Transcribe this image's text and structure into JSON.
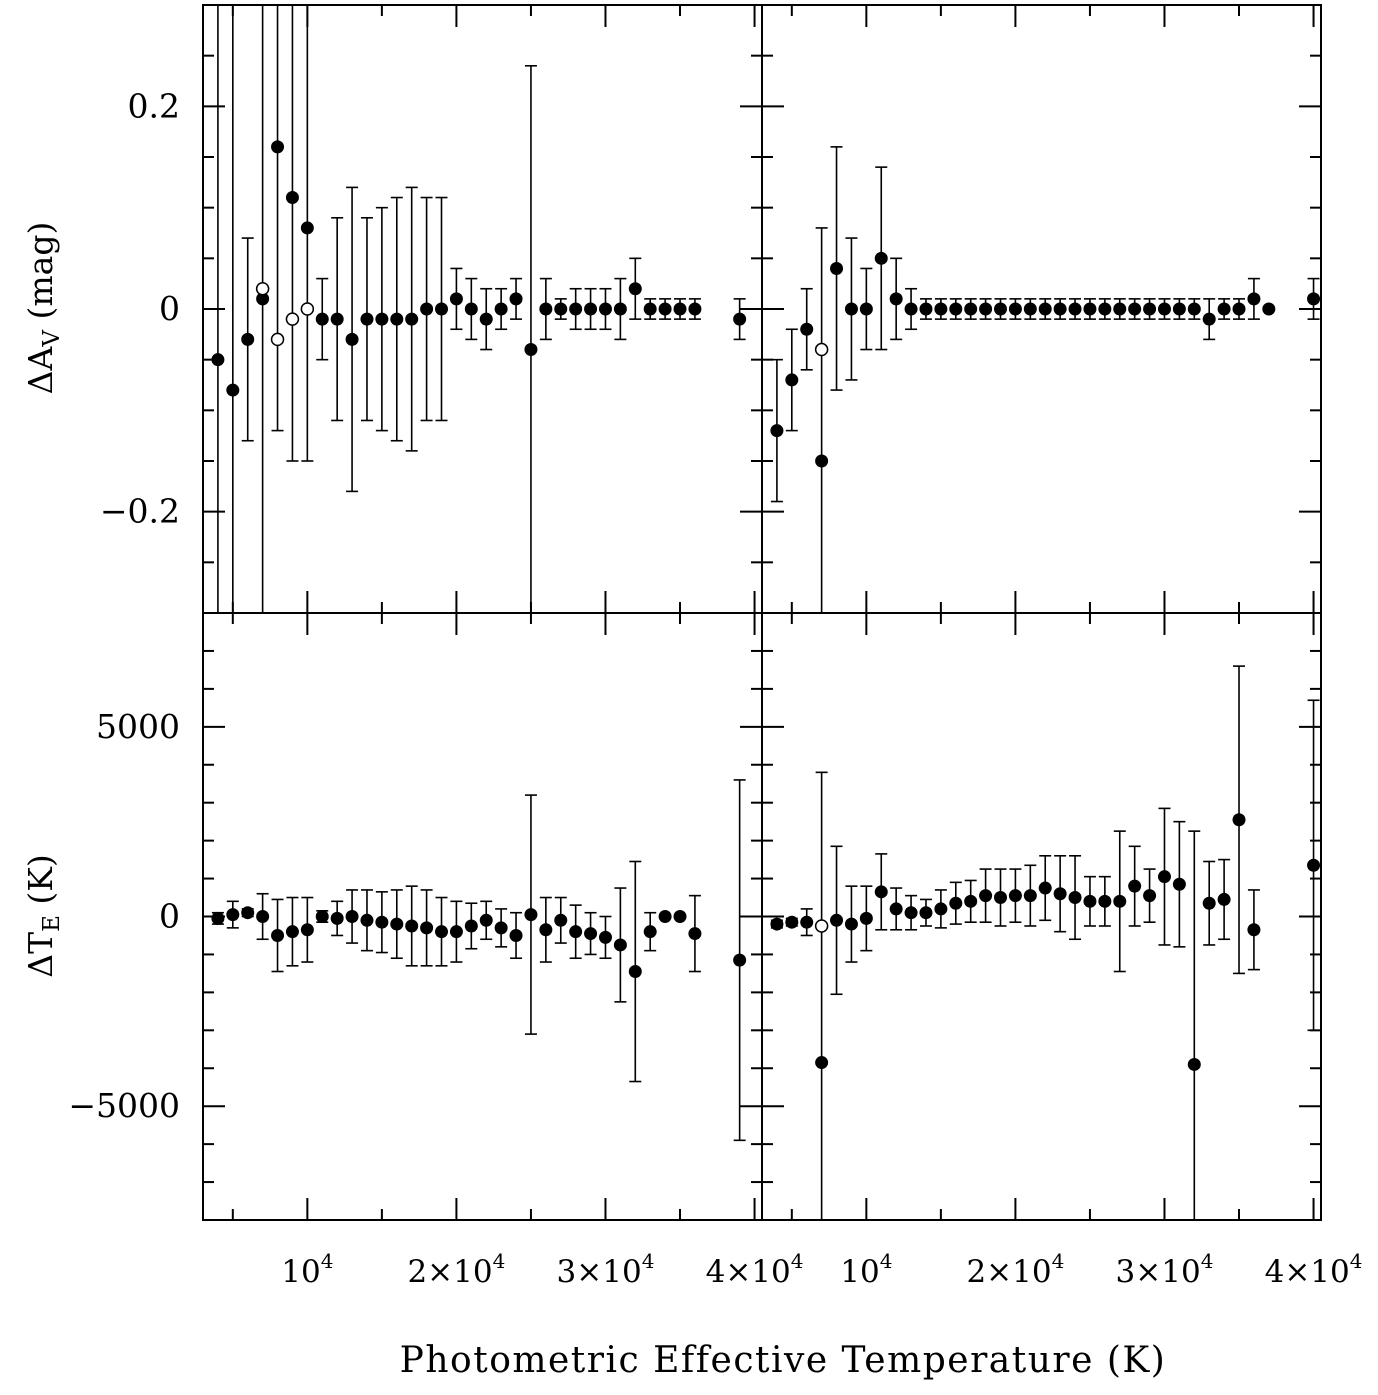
{
  "figure": {
    "xlabel": "Photometric Effective Temperature (K)",
    "ylabel_top": {
      "main": "ΔA",
      "sub": "V",
      "rest": " (mag)"
    },
    "ylabel_bottom": {
      "main": "ΔT",
      "sub": "E",
      "rest": " (K)"
    }
  },
  "chart_data": [
    {
      "type": "scatter",
      "panel": "top-left",
      "ylabel": "ΔAV (mag)",
      "xlim": [
        3000,
        40500
      ],
      "ylim": [
        -0.3,
        0.3
      ],
      "xticks": [
        10000,
        20000,
        30000,
        40000
      ],
      "xtick_labels": [
        {
          "m": "",
          "e": "10",
          "p": "4"
        },
        {
          "m": "2×",
          "e": "10",
          "p": "4"
        },
        {
          "m": "3×",
          "e": "10",
          "p": "4"
        },
        {
          "m": "4×",
          "e": "10",
          "p": "4"
        }
      ],
      "yticks": [
        -0.2,
        0,
        0.2
      ],
      "ytick_labels": [
        "−0.2",
        "0",
        "0.2"
      ],
      "show_xtick_labels": false,
      "show_ytick_labels": true,
      "series": [
        {
          "marker": "filled",
          "points": [
            [
              4000,
              -0.05,
              0.4
            ],
            [
              5000,
              -0.08,
              0.4
            ],
            [
              6000,
              -0.03,
              0.1
            ],
            [
              7000,
              0.01,
              0.45
            ],
            [
              8000,
              0.16,
              0.28
            ],
            [
              9000,
              0.11,
              0.26
            ],
            [
              10000,
              0.08,
              0.23
            ],
            [
              11000,
              -0.01,
              0.04
            ],
            [
              12000,
              -0.01,
              0.1
            ],
            [
              13000,
              -0.03,
              0.15
            ],
            [
              14000,
              -0.01,
              0.1
            ],
            [
              15000,
              -0.01,
              0.11
            ],
            [
              16000,
              -0.01,
              0.12
            ],
            [
              17000,
              -0.01,
              0.13
            ],
            [
              18000,
              0,
              0.11
            ],
            [
              19000,
              0,
              0.11
            ],
            [
              20000,
              0.01,
              0.03
            ],
            [
              21000,
              0,
              0.03
            ],
            [
              22000,
              -0.01,
              0.03
            ],
            [
              23000,
              0,
              0.02
            ],
            [
              24000,
              0.01,
              0.02
            ],
            [
              25000,
              -0.04,
              0.28
            ],
            [
              26000,
              0,
              0.03
            ],
            [
              27000,
              0,
              0.01
            ],
            [
              28000,
              0,
              0.02
            ],
            [
              29000,
              0,
              0.02
            ],
            [
              30000,
              0,
              0.02
            ],
            [
              31000,
              0,
              0.03
            ],
            [
              32000,
              0.02,
              0.03
            ],
            [
              33000,
              0,
              0.01
            ],
            [
              34000,
              0,
              0.01
            ],
            [
              35000,
              0,
              0.01
            ],
            [
              36000,
              0,
              0.01
            ],
            [
              39000,
              -0.01,
              0.02
            ],
            [
              41000,
              0.01,
              0.02
            ]
          ]
        },
        {
          "marker": "open",
          "points": [
            [
              7000,
              0.02
            ],
            [
              8000,
              -0.03
            ],
            [
              9000,
              -0.01
            ],
            [
              10000,
              0
            ]
          ]
        }
      ]
    },
    {
      "type": "scatter",
      "panel": "top-right",
      "xlim": [
        3000,
        40500
      ],
      "ylim": [
        -0.3,
        0.3
      ],
      "xticks": [
        10000,
        20000,
        30000,
        40000
      ],
      "yticks": [
        -0.2,
        0,
        0.2
      ],
      "show_xtick_labels": false,
      "show_ytick_labels": false,
      "series": [
        {
          "marker": "filled",
          "points": [
            [
              4000,
              -0.12,
              0.07
            ],
            [
              5000,
              -0.07,
              0.05
            ],
            [
              6000,
              -0.02,
              0.04
            ],
            [
              7000,
              -0.15,
              0.23
            ],
            [
              8000,
              0.04,
              0.12
            ],
            [
              9000,
              0,
              0.07
            ],
            [
              10000,
              0,
              0.04
            ],
            [
              11000,
              0.05,
              0.09
            ],
            [
              12000,
              0.01,
              0.04
            ],
            [
              13000,
              0,
              0.02
            ],
            [
              14000,
              0,
              0.01
            ],
            [
              15000,
              0,
              0.01
            ],
            [
              16000,
              0,
              0.01
            ],
            [
              17000,
              0,
              0.01
            ],
            [
              18000,
              0,
              0.01
            ],
            [
              19000,
              0,
              0.01
            ],
            [
              20000,
              0,
              0.01
            ],
            [
              21000,
              0,
              0.01
            ],
            [
              22000,
              0,
              0.01
            ],
            [
              23000,
              0,
              0.01
            ],
            [
              24000,
              0,
              0.01
            ],
            [
              25000,
              0,
              0.01
            ],
            [
              26000,
              0,
              0.01
            ],
            [
              27000,
              0,
              0.01
            ],
            [
              28000,
              0,
              0.01
            ],
            [
              29000,
              0,
              0.01
            ],
            [
              30000,
              0,
              0.01
            ],
            [
              31000,
              0,
              0.01
            ],
            [
              32000,
              0,
              0.01
            ],
            [
              33000,
              -0.01,
              0.02
            ],
            [
              34000,
              0,
              0.01
            ],
            [
              35000,
              0,
              0.01
            ],
            [
              36000,
              0.01,
              0.02
            ],
            [
              37000,
              0,
              0
            ],
            [
              40000,
              0.01,
              0.02
            ],
            [
              42000,
              0,
              0.01
            ]
          ]
        },
        {
          "marker": "open",
          "points": [
            [
              7000,
              -0.04
            ]
          ]
        }
      ]
    },
    {
      "type": "scatter",
      "panel": "bottom-left",
      "ylabel": "ΔTE (K)",
      "xlim": [
        3000,
        40500
      ],
      "ylim": [
        -8000,
        8000
      ],
      "xticks": [
        10000,
        20000,
        30000,
        40000
      ],
      "xtick_labels": [
        {
          "m": "",
          "e": "10",
          "p": "4"
        },
        {
          "m": "2×",
          "e": "10",
          "p": "4"
        },
        {
          "m": "3×",
          "e": "10",
          "p": "4"
        },
        {
          "m": "4×",
          "e": "10",
          "p": "4"
        }
      ],
      "yticks": [
        -5000,
        0,
        5000
      ],
      "ytick_labels": [
        "−5000",
        "0",
        "5000"
      ],
      "show_xtick_labels": true,
      "show_ytick_labels": true,
      "series": [
        {
          "marker": "filled",
          "points": [
            [
              4000,
              -50,
              150
            ],
            [
              5000,
              50,
              350
            ],
            [
              6000,
              100,
              100
            ],
            [
              7000,
              0,
              600
            ],
            [
              8000,
              -500,
              950
            ],
            [
              9000,
              -400,
              900
            ],
            [
              10000,
              -350,
              850
            ],
            [
              11000,
              0,
              150
            ],
            [
              12000,
              -50,
              450
            ],
            [
              13000,
              0,
              700
            ],
            [
              14000,
              -100,
              800
            ],
            [
              15000,
              -150,
              800
            ],
            [
              16000,
              -200,
              900
            ],
            [
              17000,
              -250,
              1050
            ],
            [
              18000,
              -300,
              1000
            ],
            [
              19000,
              -400,
              900
            ],
            [
              20000,
              -400,
              800
            ],
            [
              21000,
              -250,
              600
            ],
            [
              22000,
              -100,
              500
            ],
            [
              23000,
              -300,
              500
            ],
            [
              24000,
              -500,
              600
            ],
            [
              25000,
              50,
              3150
            ],
            [
              26000,
              -350,
              850
            ],
            [
              27000,
              -100,
              600
            ],
            [
              28000,
              -400,
              700
            ],
            [
              29000,
              -450,
              550
            ],
            [
              30000,
              -550,
              550
            ],
            [
              31000,
              -750,
              1500
            ],
            [
              32000,
              -1450,
              2900
            ],
            [
              33000,
              -400,
              500
            ],
            [
              34000,
              0,
              0
            ],
            [
              35000,
              0,
              0
            ],
            [
              36000,
              -450,
              1000
            ],
            [
              39000,
              -1150,
              4750
            ],
            [
              41000,
              -5000,
              5800
            ]
          ]
        }
      ]
    },
    {
      "type": "scatter",
      "panel": "bottom-right",
      "xlim": [
        3000,
        40500
      ],
      "ylim": [
        -8000,
        8000
      ],
      "xticks": [
        10000,
        20000,
        30000,
        40000
      ],
      "xtick_labels": [
        {
          "m": "",
          "e": "10",
          "p": "4"
        },
        {
          "m": "2×",
          "e": "10",
          "p": "4"
        },
        {
          "m": "3×",
          "e": "10",
          "p": "4"
        },
        {
          "m": "4×",
          "e": "10",
          "p": "4"
        }
      ],
      "yticks": [
        -5000,
        0,
        5000
      ],
      "show_xtick_labels": true,
      "show_ytick_labels": false,
      "series": [
        {
          "marker": "filled",
          "points": [
            [
              4000,
              -200,
              100
            ],
            [
              5000,
              -150,
              100
            ],
            [
              6000,
              -150,
              350
            ],
            [
              7000,
              -3850,
              7650
            ],
            [
              8000,
              -100,
              1950
            ],
            [
              9000,
              -200,
              1000
            ],
            [
              10000,
              -50,
              850
            ],
            [
              11000,
              650,
              1000
            ],
            [
              12000,
              200,
              550
            ],
            [
              13000,
              100,
              450
            ],
            [
              14000,
              100,
              350
            ],
            [
              15000,
              200,
              500
            ],
            [
              16000,
              350,
              550
            ],
            [
              17000,
              400,
              550
            ],
            [
              18000,
              550,
              700
            ],
            [
              19000,
              500,
              750
            ],
            [
              20000,
              550,
              700
            ],
            [
              21000,
              550,
              800
            ],
            [
              22000,
              750,
              850
            ],
            [
              23000,
              600,
              1000
            ],
            [
              24000,
              500,
              1100
            ],
            [
              25000,
              400,
              650
            ],
            [
              26000,
              400,
              650
            ],
            [
              27000,
              400,
              1850
            ],
            [
              28000,
              800,
              1050
            ],
            [
              29000,
              550,
              700
            ],
            [
              30000,
              1050,
              1800
            ],
            [
              31000,
              850,
              1650
            ],
            [
              32000,
              -3900,
              6150
            ],
            [
              33000,
              350,
              1100
            ],
            [
              34000,
              450,
              1050
            ],
            [
              35000,
              2550,
              4050
            ],
            [
              36000,
              -350,
              1050
            ],
            [
              40000,
              1350,
              4350
            ],
            [
              42000,
              -2550,
              3600
            ]
          ]
        },
        {
          "marker": "open",
          "points": [
            [
              7000,
              -250
            ]
          ]
        }
      ]
    }
  ]
}
